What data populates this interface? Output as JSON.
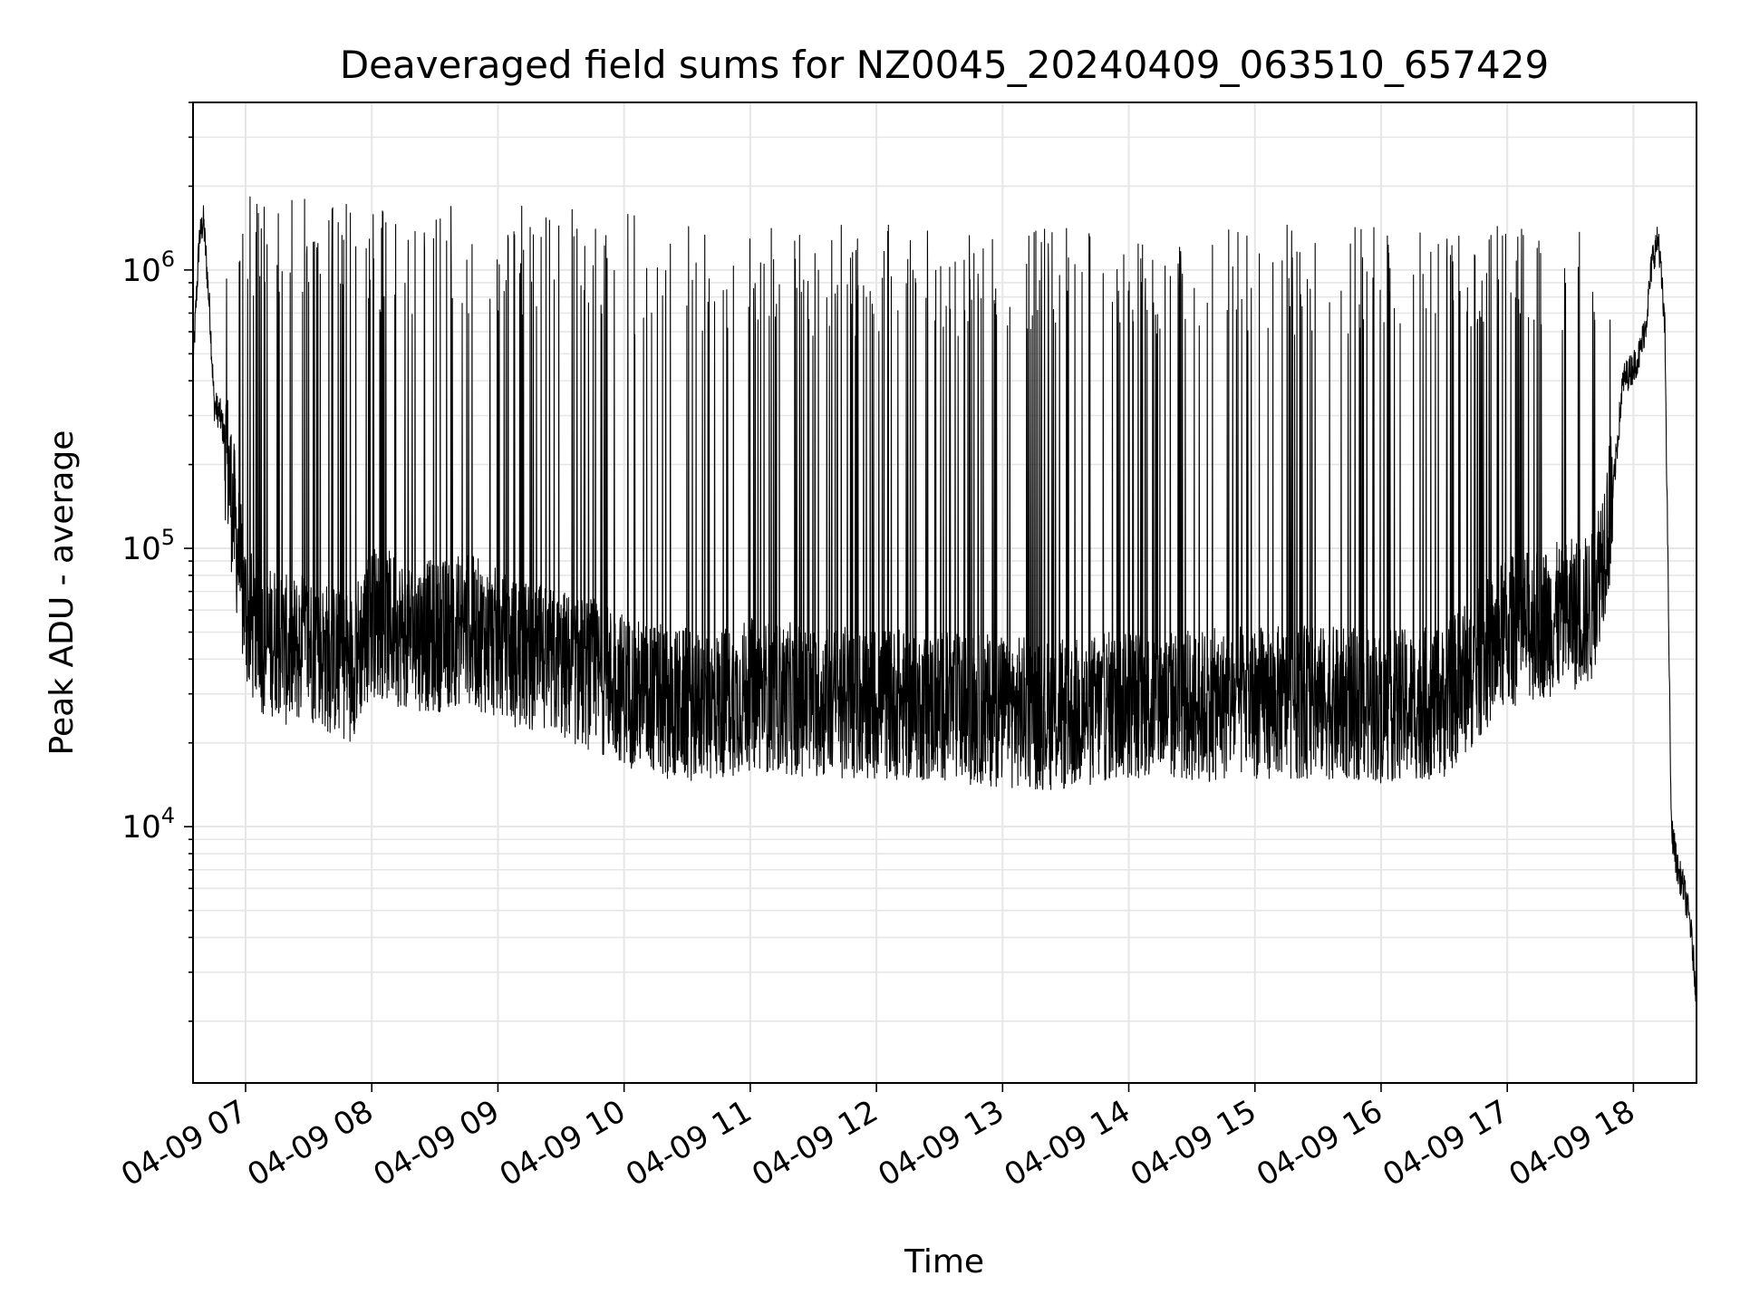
{
  "chart_data": {
    "type": "line",
    "title": "Deaveraged field sums for NZ0045_20240409_063510_657429",
    "xlabel": "Time",
    "ylabel": "Peak ADU - average",
    "x_range": [
      "2024-04-09 06:35",
      "2024-04-09 18:30"
    ],
    "y_range": [
      1200,
      4000000
    ],
    "y_scale": "log",
    "grid": true,
    "x_ticks": [
      "04-09 07",
      "04-09 08",
      "04-09 09",
      "04-09 10",
      "04-09 11",
      "04-09 12",
      "04-09 13",
      "04-09 14",
      "04-09 15",
      "04-09 16",
      "04-09 17",
      "04-09 18"
    ],
    "y_ticks": [
      {
        "value": 10000,
        "base": "10",
        "exp": "4"
      },
      {
        "value": 100000,
        "base": "10",
        "exp": "5"
      },
      {
        "value": 1000000,
        "base": "10",
        "exp": "6"
      }
    ],
    "series": [
      {
        "color": "#000000",
        "x": [
          "2024-04-09 06:35",
          "2024-04-09 06:38",
          "2024-04-09 06:40",
          "2024-04-09 06:43",
          "2024-04-09 06:45",
          "2024-04-09 06:48",
          "2024-04-09 06:50",
          "2024-04-09 06:53",
          "2024-04-09 06:55",
          "2024-04-09 06:58",
          "2024-04-09 07:00",
          "2024-04-09 07:03",
          "2024-04-09 07:06",
          "2024-04-09 07:10",
          "2024-04-09 07:15",
          "2024-04-09 07:20",
          "2024-04-09 07:30",
          "2024-04-09 07:40",
          "2024-04-09 07:50",
          "2024-04-09 08:00",
          "2024-04-09 08:15",
          "2024-04-09 08:30",
          "2024-04-09 08:45",
          "2024-04-09 09:00",
          "2024-04-09 09:15",
          "2024-04-09 09:30",
          "2024-04-09 09:45",
          "2024-04-09 09:55",
          "2024-04-09 10:05",
          "2024-04-09 10:20",
          "2024-04-09 10:40",
          "2024-04-09 11:00",
          "2024-04-09 11:30",
          "2024-04-09 12:00",
          "2024-04-09 12:30",
          "2024-04-09 13:00",
          "2024-04-09 13:30",
          "2024-04-09 14:00",
          "2024-04-09 14:30",
          "2024-04-09 15:00",
          "2024-04-09 15:30",
          "2024-04-09 16:00",
          "2024-04-09 16:30",
          "2024-04-09 17:00",
          "2024-04-09 17:20",
          "2024-04-09 17:40",
          "2024-04-09 17:50",
          "2024-04-09 17:55",
          "2024-04-09 18:00",
          "2024-04-09 18:03",
          "2024-04-09 18:06",
          "2024-04-09 18:09",
          "2024-04-09 18:12",
          "2024-04-09 18:15",
          "2024-04-09 18:18",
          "2024-04-09 18:21",
          "2024-04-09 18:24",
          "2024-04-09 18:27",
          "2024-04-09 18:30"
        ],
        "y": [
          450000,
          1300000,
          1500000,
          700000,
          330000,
          300000,
          250000,
          160000,
          120000,
          75000,
          60000,
          52000,
          50000,
          45000,
          48000,
          42000,
          45000,
          40000,
          38000,
          55000,
          50000,
          48000,
          52000,
          45000,
          40000,
          38000,
          35000,
          33000,
          30000,
          28000,
          27000,
          30000,
          28000,
          28000,
          27000,
          26000,
          25000,
          28000,
          27000,
          28000,
          28000,
          27000,
          28000,
          50000,
          55000,
          60000,
          150000,
          400000,
          450000,
          500000,
          650000,
          1100000,
          1300000,
          600000,
          10000,
          7000,
          6000,
          4500,
          2500
        ]
      }
    ],
    "bursts": {
      "description_free": true,
      "segments": [
        {
          "start": "2024-04-09 06:50",
          "end": "2024-04-09 08:00",
          "peak": 1400000
        },
        {
          "start": "2024-04-09 08:00",
          "end": "2024-04-09 10:05",
          "peak": 1300000
        },
        {
          "start": "2024-04-09 10:05",
          "end": "2024-04-09 17:50",
          "peak": 1100000
        }
      ]
    }
  }
}
